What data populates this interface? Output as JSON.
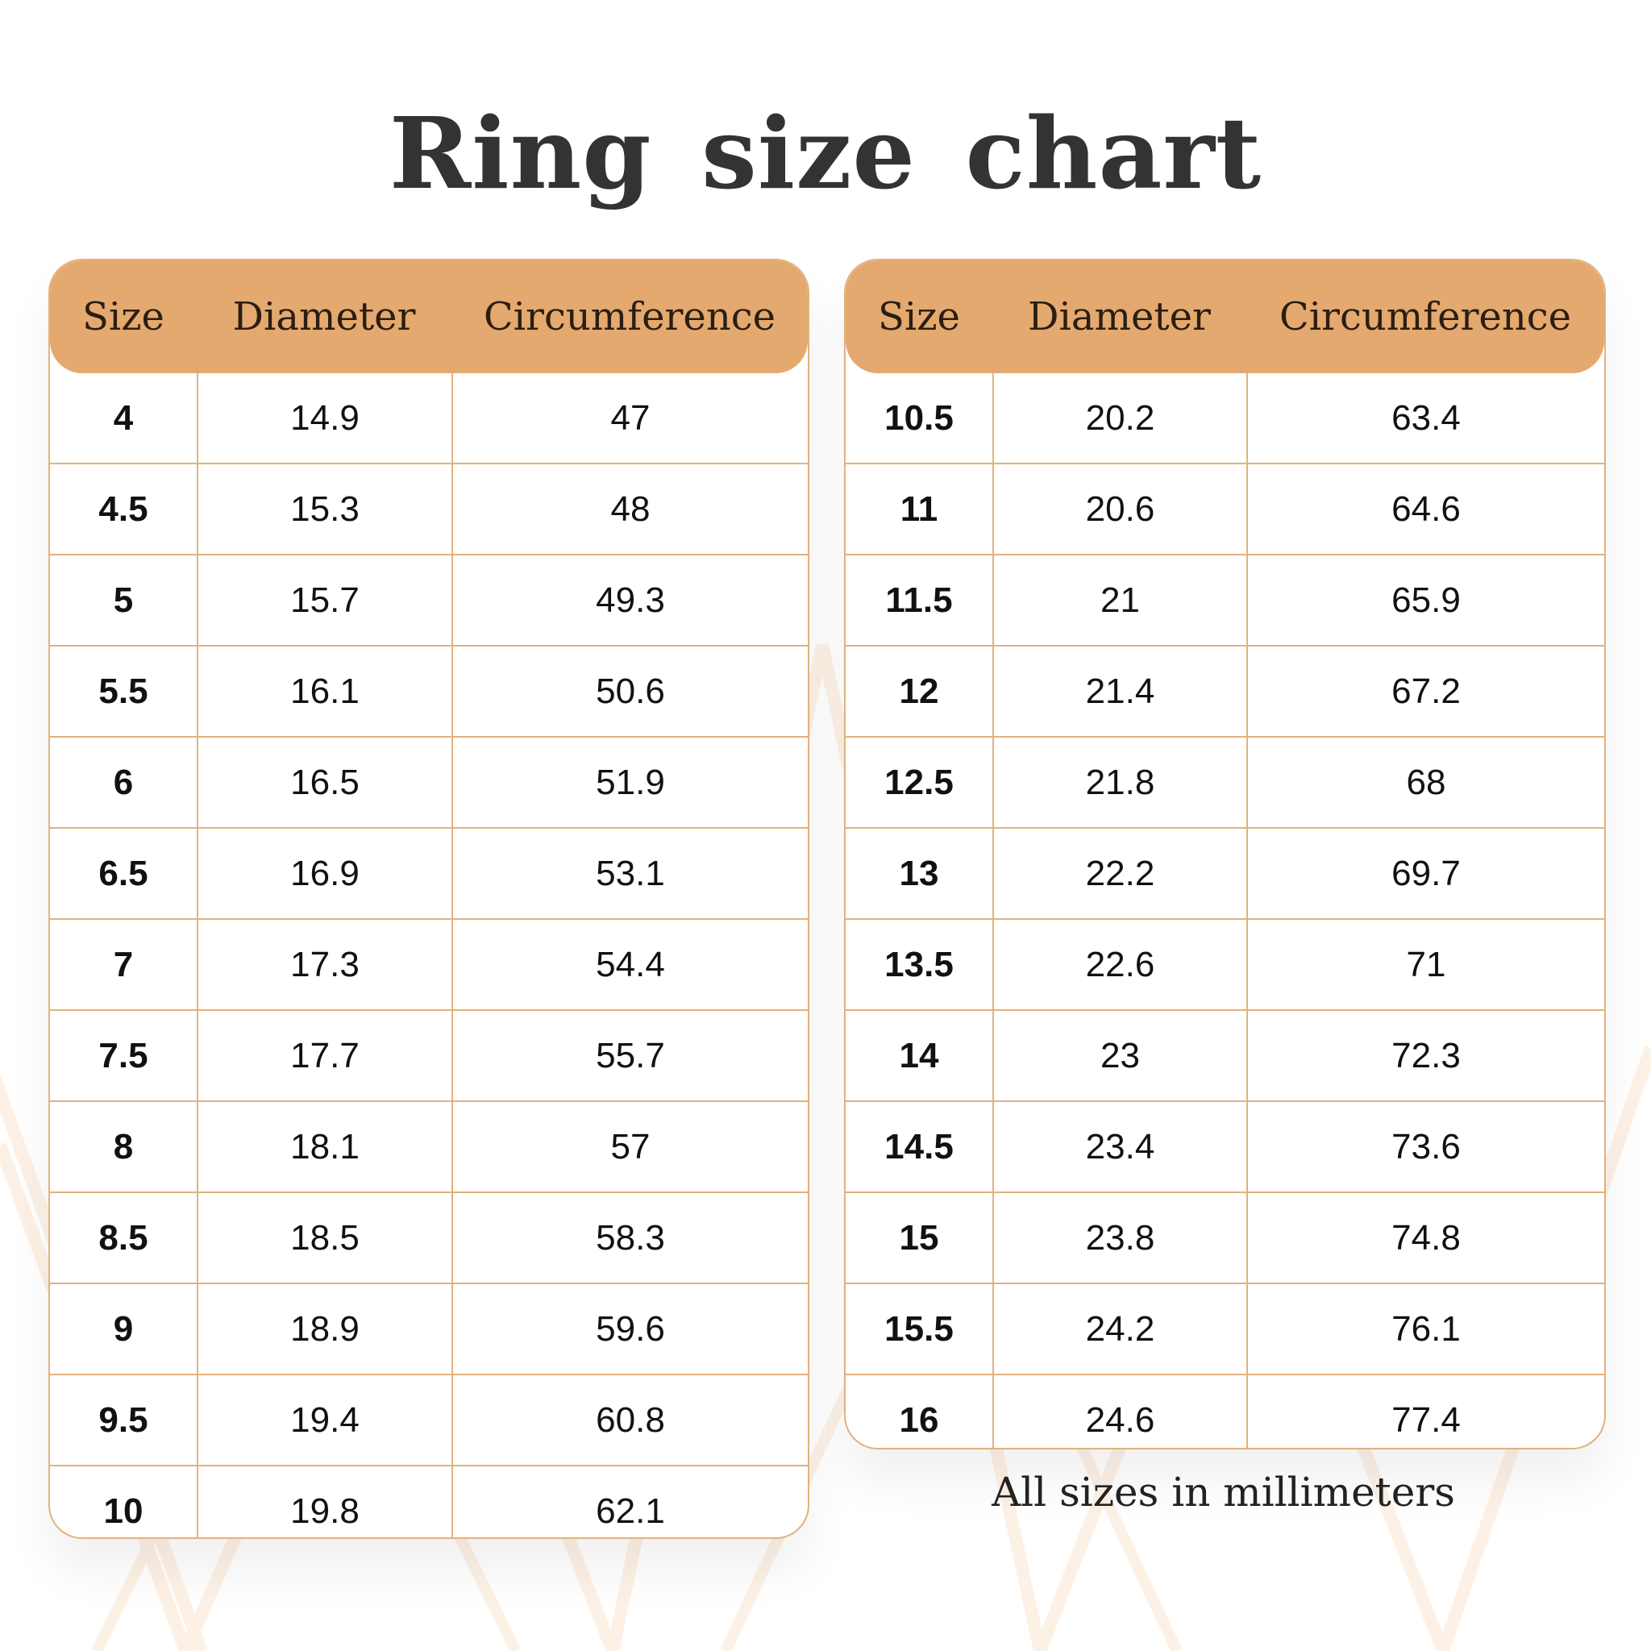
{
  "title": "Ring size chart",
  "headers": [
    "Size",
    "Diameter",
    "Circumference"
  ],
  "accent_color": "#e4a96f",
  "left_table": [
    [
      "4",
      "14.9",
      "47"
    ],
    [
      "4.5",
      "15.3",
      "48"
    ],
    [
      "5",
      "15.7",
      "49.3"
    ],
    [
      "5.5",
      "16.1",
      "50.6"
    ],
    [
      "6",
      "16.5",
      "51.9"
    ],
    [
      "6.5",
      "16.9",
      "53.1"
    ],
    [
      "7",
      "17.3",
      "54.4"
    ],
    [
      "7.5",
      "17.7",
      "55.7"
    ],
    [
      "8",
      "18.1",
      "57"
    ],
    [
      "8.5",
      "18.5",
      "58.3"
    ],
    [
      "9",
      "18.9",
      "59.6"
    ],
    [
      "9.5",
      "19.4",
      "60.8"
    ],
    [
      "10",
      "19.8",
      "62.1"
    ]
  ],
  "right_table": [
    [
      "10.5",
      "20.2",
      "63.4"
    ],
    [
      "11",
      "20.6",
      "64.6"
    ],
    [
      "11.5",
      "21",
      "65.9"
    ],
    [
      "12",
      "21.4",
      "67.2"
    ],
    [
      "12.5",
      "21.8",
      "68"
    ],
    [
      "13",
      "22.2",
      "69.7"
    ],
    [
      "13.5",
      "22.6",
      "71"
    ],
    [
      "14",
      "23",
      "72.3"
    ],
    [
      "14.5",
      "23.4",
      "73.6"
    ],
    [
      "15",
      "23.8",
      "74.8"
    ],
    [
      "15.5",
      "24.2",
      "76.1"
    ],
    [
      "16",
      "24.6",
      "77.4"
    ]
  ],
  "note": "All sizes in millimeters"
}
